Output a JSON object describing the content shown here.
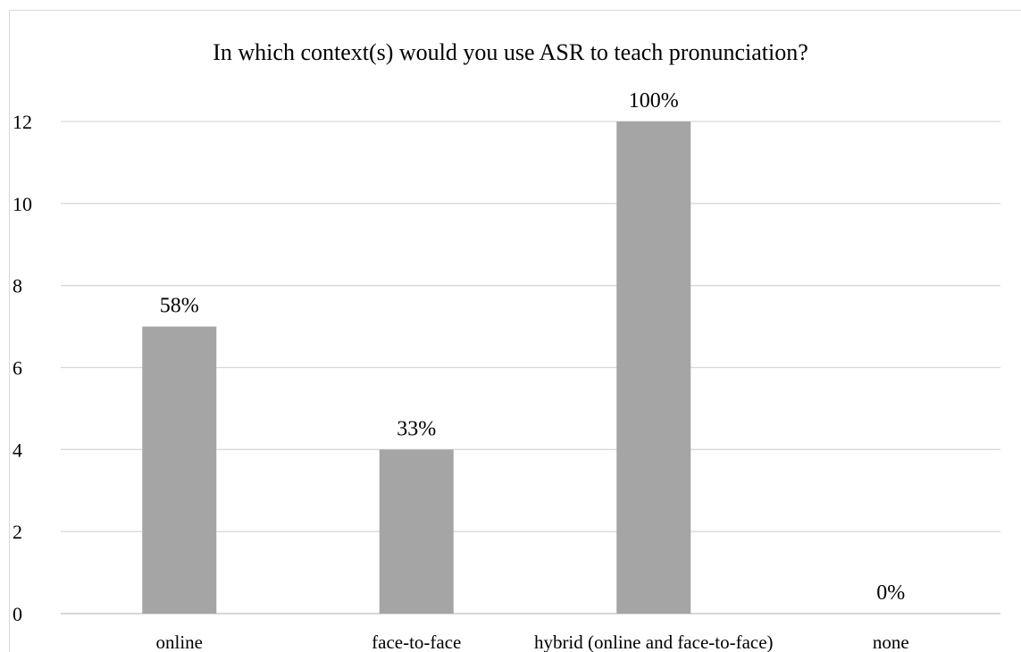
{
  "chart_data": {
    "type": "bar",
    "title": "In which context(s) would you use ASR to teach pronunciation?",
    "xlabel": "",
    "ylabel": "",
    "categories": [
      "online",
      "face-to-face",
      "hybrid (online and face-to-face)",
      "none"
    ],
    "values": [
      7,
      4,
      12,
      0
    ],
    "data_labels": [
      "58%",
      "33%",
      "100%",
      "0%"
    ],
    "ylim": [
      0,
      12
    ],
    "yticks": [
      0,
      2,
      4,
      6,
      8,
      10,
      12
    ],
    "grid": true,
    "legend": "none",
    "colors": {
      "bar": "#a5a5a5",
      "grid": "#d9d9d9",
      "axis": "#bfbfbf"
    }
  }
}
